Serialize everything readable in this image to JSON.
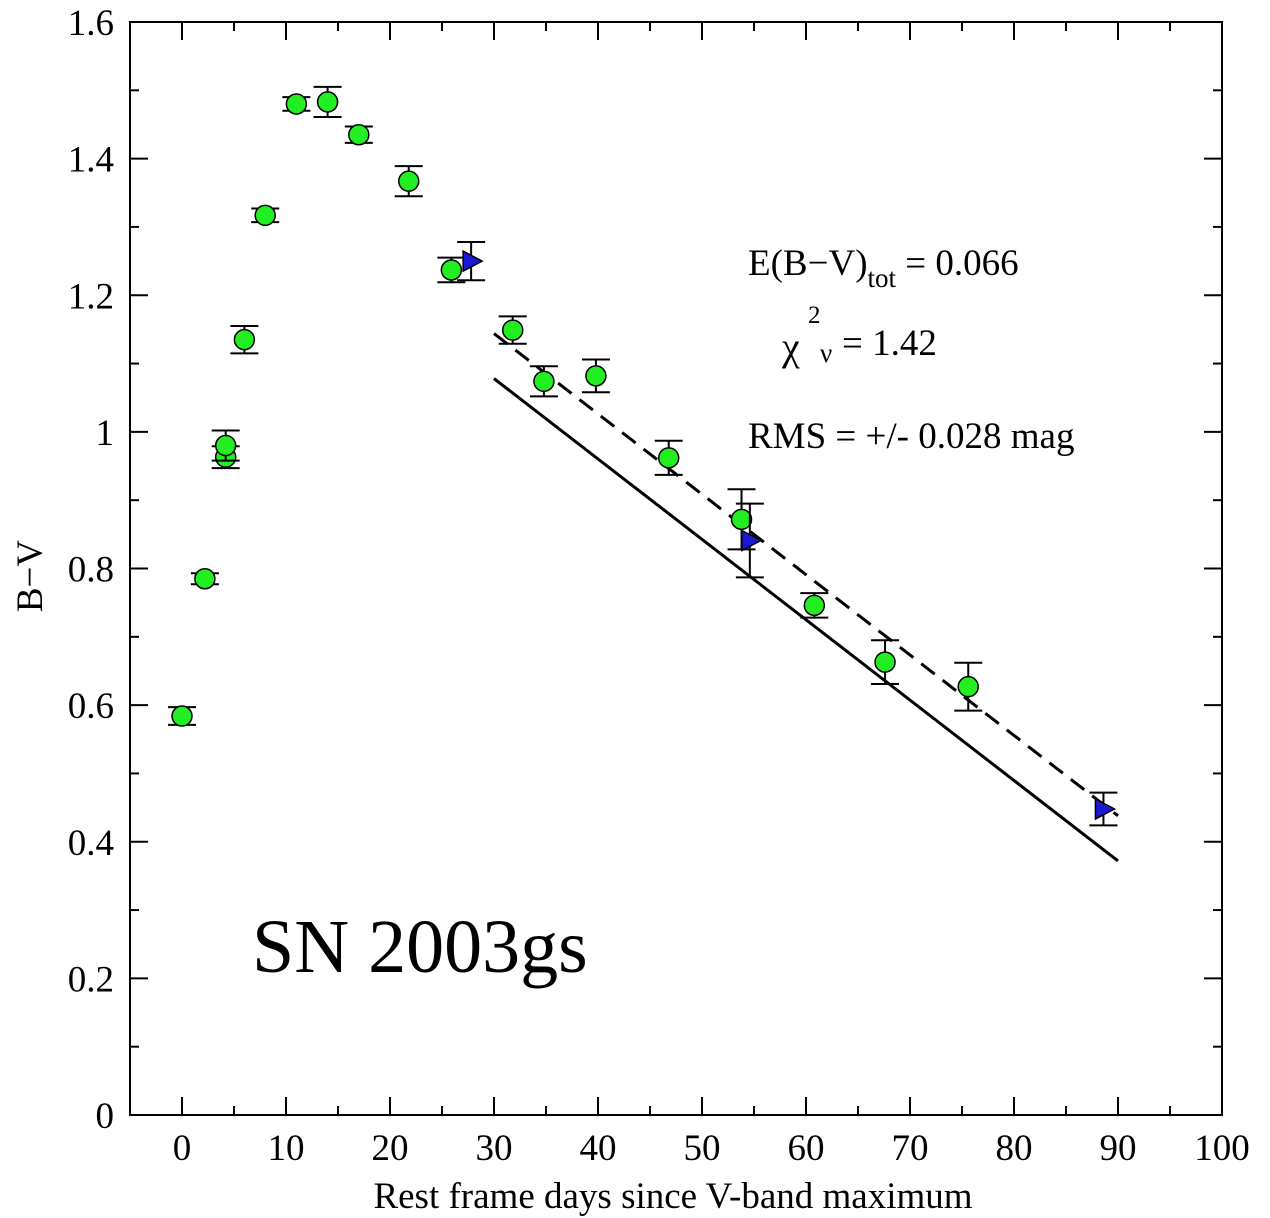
{
  "chart_data": {
    "type": "scatter",
    "title": "",
    "xlabel": "Rest frame days since V-band maximum",
    "ylabel": "B−V",
    "xlim": [
      -5,
      100
    ],
    "ylim": [
      0,
      1.6
    ],
    "x_ticks": [
      "0",
      "10",
      "20",
      "30",
      "40",
      "50",
      "60",
      "70",
      "80",
      "90",
      "100"
    ],
    "y_ticks": [
      "0",
      "0.2",
      "0.4",
      "0.6",
      "0.8",
      "1",
      "1.2",
      "1.4",
      "1.6"
    ],
    "grid": false,
    "annotation_label": "SN 2003gs",
    "fit_stats": {
      "ebv_prefix": "E(B−V)",
      "ebv_sub": "tot",
      "ebv_suffix": " = 0.066",
      "chi_symbol": "χ",
      "chi_sup": "2",
      "chi_sub": "ν",
      "chi_suffix": " = 1.42",
      "rms": "RMS = +/- 0.028 mag"
    },
    "colors": {
      "circle_fill": "#22ee22",
      "triangle_fill": "#1a1ad6",
      "stroke": "#000000"
    },
    "series": [
      {
        "marker": "circle",
        "points": [
          {
            "x": 0.0,
            "y": 0.584,
            "err": 0.013
          },
          {
            "x": 2.2,
            "y": 0.785,
            "err": 0.008
          },
          {
            "x": 4.2,
            "y": 0.963,
            "err": 0.016
          },
          {
            "x": 4.2,
            "y": 0.98,
            "err": 0.022
          },
          {
            "x": 6.0,
            "y": 1.135,
            "err": 0.02
          },
          {
            "x": 8.0,
            "y": 1.317,
            "err": 0.01
          },
          {
            "x": 11.0,
            "y": 1.48,
            "err": 0.01
          },
          {
            "x": 14.0,
            "y": 1.483,
            "err": 0.022
          },
          {
            "x": 17.0,
            "y": 1.435,
            "err": 0.012
          },
          {
            "x": 21.8,
            "y": 1.367,
            "err": 0.022
          },
          {
            "x": 25.9,
            "y": 1.237,
            "err": 0.018
          },
          {
            "x": 31.8,
            "y": 1.149,
            "err": 0.02
          },
          {
            "x": 34.8,
            "y": 1.074,
            "err": 0.022
          },
          {
            "x": 39.8,
            "y": 1.082,
            "err": 0.024
          },
          {
            "x": 46.8,
            "y": 0.962,
            "err": 0.025
          },
          {
            "x": 53.8,
            "y": 0.872,
            "err": 0.044
          },
          {
            "x": 60.8,
            "y": 0.746,
            "err": 0.018
          },
          {
            "x": 67.6,
            "y": 0.663,
            "err": 0.032
          },
          {
            "x": 75.6,
            "y": 0.627,
            "err": 0.035
          }
        ]
      },
      {
        "marker": "triangle",
        "points": [
          {
            "x": 27.8,
            "y": 1.25,
            "err": 0.028
          },
          {
            "x": 54.6,
            "y": 0.841,
            "err": 0.054
          },
          {
            "x": 88.6,
            "y": 0.448,
            "err": 0.024
          }
        ]
      }
    ],
    "lines": [
      {
        "style": "solid",
        "x": [
          30,
          90
        ],
        "y": [
          1.078,
          0.372
        ]
      },
      {
        "style": "dashed",
        "x": [
          30,
          90
        ],
        "y": [
          1.144,
          0.438
        ]
      }
    ]
  }
}
